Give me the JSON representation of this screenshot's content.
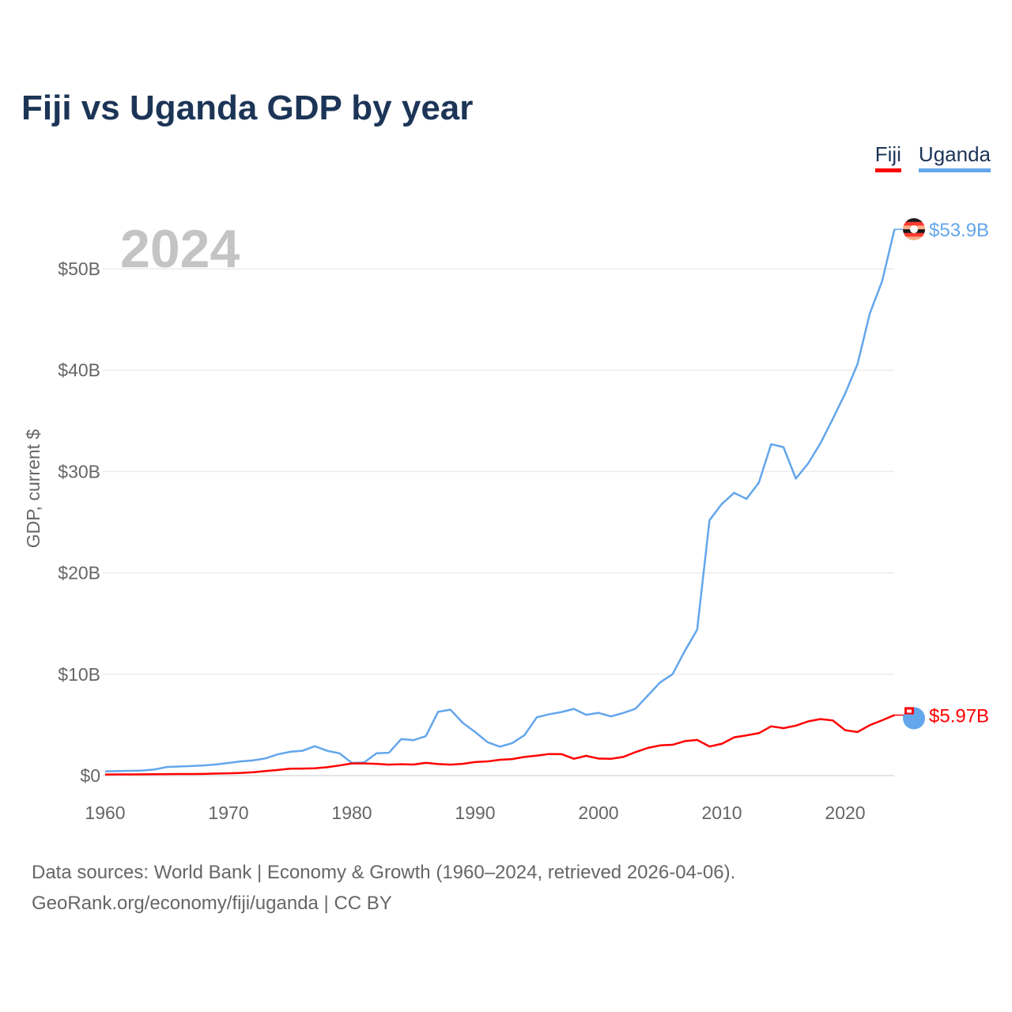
{
  "title": "Fiji vs Uganda GDP by year",
  "legend": [
    {
      "label": "Fiji",
      "color": "#ff0000"
    },
    {
      "label": "Uganda",
      "color": "#63a6ec"
    }
  ],
  "year_label": "2024",
  "footer": {
    "line1": "Data sources: World Bank | Economy & Growth (1960–2024, retrieved 2026-04-06).",
    "line2": "GeoRank.org/economy/fiji/uganda | CC BY"
  },
  "chart_data": {
    "type": "line",
    "title": "Fiji vs Uganda GDP by year",
    "xlabel": "",
    "ylabel": "GDP, current $",
    "xlim": [
      1960,
      2024
    ],
    "ylim": [
      0,
      55
    ],
    "x_ticks": [
      1960,
      1970,
      1980,
      1990,
      2000,
      2010,
      2020
    ],
    "x_tick_labels": [
      "1960",
      "1970",
      "1980",
      "1990",
      "2000",
      "2010",
      "2020"
    ],
    "y_ticks": [
      0,
      10,
      20,
      30,
      40,
      50
    ],
    "y_tick_labels": [
      "$0",
      "$10B",
      "$20B",
      "$30B",
      "$40B",
      "$50B"
    ],
    "grid": true,
    "legend_position": "top-right",
    "x_start": 1960,
    "series": [
      {
        "name": "Fiji",
        "color": "#ff0000",
        "end_label": "$5.97B",
        "flag": "fiji-flag",
        "values": [
          0.11,
          0.12,
          0.12,
          0.13,
          0.14,
          0.15,
          0.16,
          0.16,
          0.17,
          0.2,
          0.22,
          0.26,
          0.33,
          0.45,
          0.56,
          0.68,
          0.69,
          0.72,
          0.83,
          1.0,
          1.2,
          1.2,
          1.16,
          1.08,
          1.12,
          1.09,
          1.26,
          1.14,
          1.08,
          1.16,
          1.34,
          1.4,
          1.56,
          1.63,
          1.84,
          1.97,
          2.13,
          2.12,
          1.66,
          1.95,
          1.68,
          1.66,
          1.84,
          2.32,
          2.73,
          2.98,
          3.04,
          3.4,
          3.52,
          2.87,
          3.14,
          3.77,
          3.97,
          4.19,
          4.86,
          4.68,
          4.93,
          5.35,
          5.58,
          5.44,
          4.48,
          4.3,
          4.98,
          5.46,
          5.97
        ]
      },
      {
        "name": "Uganda",
        "color": "#63a6ec",
        "end_label": "$53.9B",
        "flag": "uganda-flag",
        "values": [
          0.42,
          0.45,
          0.47,
          0.5,
          0.6,
          0.85,
          0.9,
          0.95,
          1.0,
          1.1,
          1.25,
          1.4,
          1.5,
          1.7,
          2.1,
          2.35,
          2.45,
          2.9,
          2.45,
          2.2,
          1.25,
          1.3,
          2.2,
          2.25,
          3.6,
          3.5,
          3.9,
          6.3,
          6.5,
          5.2,
          4.3,
          3.3,
          2.85,
          3.2,
          3.99,
          5.76,
          6.05,
          6.27,
          6.58,
          6.0,
          6.19,
          5.84,
          6.18,
          6.6,
          7.9,
          9.2,
          10.0,
          12.3,
          14.4,
          25.2,
          26.8,
          27.9,
          27.3,
          28.9,
          32.7,
          32.4,
          29.3,
          30.8,
          32.8,
          35.2,
          37.7,
          40.6,
          45.6,
          48.8,
          53.9
        ]
      }
    ]
  }
}
